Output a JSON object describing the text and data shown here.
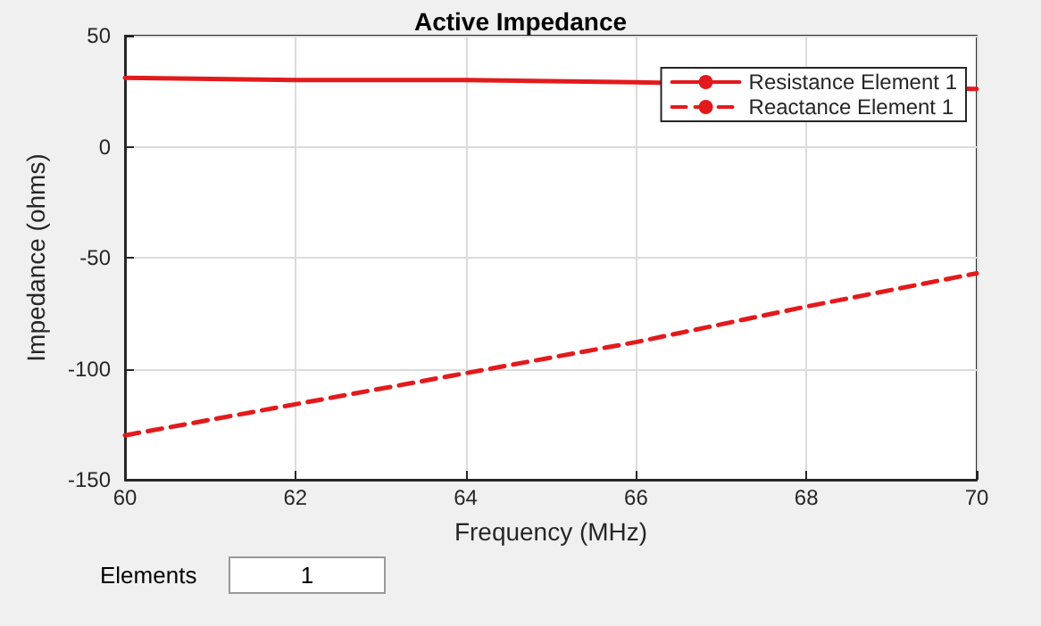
{
  "chart_data": {
    "type": "line",
    "title": "Active Impedance",
    "xlabel": "Frequency (MHz)",
    "ylabel": "Impedance (ohms)",
    "x": [
      60,
      62,
      64,
      66,
      68,
      70
    ],
    "series": [
      {
        "name": "Resistance Element 1",
        "color": "#e31a1c",
        "x": [
          60,
          62,
          64,
          66,
          70
        ],
        "values": [
          31,
          30,
          30,
          29,
          26
        ],
        "line_style": "solid"
      },
      {
        "name": "Reactance Element 1",
        "color": "#e31a1c",
        "values": [
          -130,
          -116,
          -102,
          -88,
          -72,
          -57
        ],
        "line_style": "dashed"
      }
    ],
    "xlim": [
      60,
      70
    ],
    "xticks": [
      60,
      62,
      64,
      66,
      68,
      70
    ],
    "ylim": [
      -150,
      50
    ],
    "yticks": [
      -150,
      -100,
      -50,
      0,
      50
    ],
    "grid": true,
    "legend": "top right",
    "marker": "none",
    "annotations": [
      "Elements",
      "1"
    ]
  }
}
